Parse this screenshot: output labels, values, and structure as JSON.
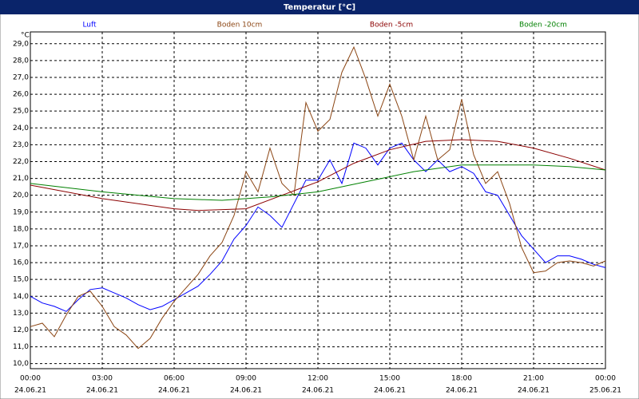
{
  "chart_data": {
    "type": "line",
    "title": "Temperatur [°C]",
    "y_unit": "°C",
    "x": [
      0,
      0.5,
      1,
      1.5,
      2,
      2.5,
      3,
      3.5,
      4,
      4.5,
      5,
      5.5,
      6,
      6.5,
      7,
      7.5,
      8,
      8.5,
      9,
      9.5,
      10,
      10.5,
      11,
      11.5,
      12,
      12.5,
      13,
      13.5,
      14,
      14.5,
      15,
      15.5,
      16,
      16.5,
      17,
      17.5,
      18,
      18.5,
      19,
      19.5,
      20,
      20.5,
      21,
      21.5,
      22,
      22.5,
      23,
      23.5,
      24
    ],
    "series": [
      {
        "name": "Luft",
        "color": "#0000ff",
        "values": [
          14.0,
          13.6,
          13.4,
          13.1,
          13.8,
          14.4,
          14.5,
          14.2,
          13.9,
          13.5,
          13.2,
          13.4,
          13.8,
          14.2,
          14.6,
          15.3,
          16.1,
          17.4,
          18.2,
          19.3,
          18.8,
          18.1,
          19.5,
          20.9,
          20.9,
          22.1,
          20.7,
          23.1,
          22.8,
          21.8,
          22.8,
          23.1,
          22.1,
          21.4,
          22.1,
          21.4,
          21.7,
          21.3,
          20.2,
          20.0,
          18.8,
          17.6,
          16.8,
          16.0,
          16.4,
          16.4,
          16.2,
          15.9,
          15.7
        ]
      },
      {
        "name": "Boden 10cm",
        "color": "#8b4513",
        "values": [
          12.2,
          12.4,
          11.6,
          12.9,
          14.0,
          14.3,
          13.4,
          12.2,
          11.7,
          10.9,
          11.5,
          12.7,
          13.7,
          14.5,
          15.3,
          16.4,
          17.2,
          18.8,
          21.4,
          20.2,
          22.8,
          20.7,
          20.0,
          25.5,
          23.8,
          24.5,
          27.3,
          28.8,
          26.9,
          24.7,
          26.6,
          24.7,
          22.1,
          24.7,
          22.1,
          22.7,
          25.7,
          22.4,
          20.7,
          21.4,
          19.5,
          16.9,
          15.4,
          15.5,
          16.0,
          16.1,
          16.0,
          15.8,
          16.1
        ]
      },
      {
        "name": "Boden -5cm",
        "color": "#8b0000",
        "x": [
          0,
          3,
          6,
          7,
          9,
          10.5,
          12,
          13.5,
          15,
          16.5,
          18,
          19.5,
          21,
          22.5,
          24
        ],
        "values": [
          20.6,
          19.8,
          19.2,
          19.1,
          19.2,
          20.0,
          20.8,
          21.9,
          22.7,
          23.2,
          23.3,
          23.2,
          22.8,
          22.2,
          21.5
        ]
      },
      {
        "name": "Boden -20cm",
        "color": "#008000",
        "x": [
          0,
          3,
          6,
          8,
          10,
          12,
          14,
          16,
          18,
          21,
          22.5,
          24
        ],
        "values": [
          20.7,
          20.2,
          19.8,
          19.7,
          19.9,
          20.2,
          20.8,
          21.4,
          21.8,
          21.8,
          21.7,
          21.5
        ]
      }
    ],
    "xlim": [
      0,
      24
    ],
    "xticks": [
      {
        "value": 0,
        "label": "00:00"
      },
      {
        "value": 3,
        "label": "03:00"
      },
      {
        "value": 6,
        "label": "06:00"
      },
      {
        "value": 9,
        "label": "09:00"
      },
      {
        "value": 12,
        "label": "12:00"
      },
      {
        "value": 15,
        "label": "15:00"
      },
      {
        "value": 18,
        "label": "18:00"
      },
      {
        "value": 21,
        "label": "21:00"
      },
      {
        "value": 24,
        "label": "00:00"
      }
    ],
    "xtick_dates": [
      "24.06.21",
      "24.06.21",
      "24.06.21",
      "24.06.21",
      "24.06.21",
      "24.06.21",
      "24.06.21",
      "24.06.21",
      "25.06.21"
    ],
    "ylim": [
      9.7,
      29.7
    ],
    "yticks": [
      {
        "value": 10,
        "label": "10,0"
      },
      {
        "value": 11,
        "label": "11,0"
      },
      {
        "value": 12,
        "label": "12,0"
      },
      {
        "value": 13,
        "label": "13,0"
      },
      {
        "value": 14,
        "label": "14,0"
      },
      {
        "value": 15,
        "label": "15,0"
      },
      {
        "value": 16,
        "label": "16,0"
      },
      {
        "value": 17,
        "label": "17,0"
      },
      {
        "value": 18,
        "label": "18,0"
      },
      {
        "value": 19,
        "label": "19,0"
      },
      {
        "value": 20,
        "label": "20,0"
      },
      {
        "value": 21,
        "label": "21,0"
      },
      {
        "value": 22,
        "label": "22,0"
      },
      {
        "value": 23,
        "label": "23,0"
      },
      {
        "value": 24,
        "label": "24,0"
      },
      {
        "value": 25,
        "label": "25,0"
      },
      {
        "value": 26,
        "label": "26,0"
      },
      {
        "value": 27,
        "label": "27,0"
      },
      {
        "value": 28,
        "label": "28,0"
      },
      {
        "value": 29,
        "label": "29,0"
      }
    ],
    "grid": true
  }
}
